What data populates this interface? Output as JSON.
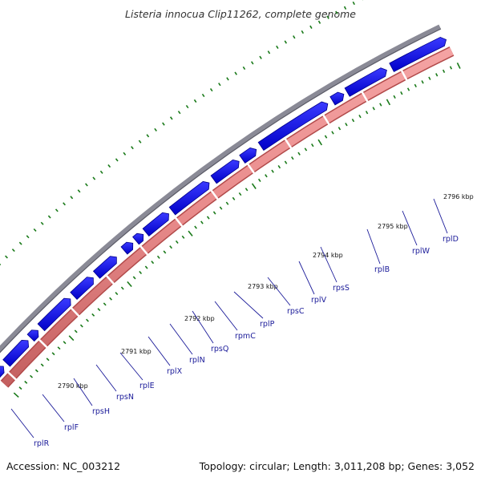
{
  "title": "Listeria innocua Clip11262, complete genome",
  "accession": "Accession: NC_003212",
  "topology_info": "Topology: circular; Length: 3,011,208 bp; Genes: 3,052",
  "colors": {
    "backbone": "#8a8a96",
    "forward_gene": "#1212e6",
    "reverse_gene": "#e88a8a",
    "tick": "#1a7a1a",
    "label": "#1a1a99"
  },
  "kbp_labels": [
    "2790 kbp",
    "2791 kbp",
    "2792 kbp",
    "2793 kbp",
    "2794 kbp",
    "2795 kbp",
    "2796 kbp"
  ],
  "genes": [
    "rplR",
    "rplF",
    "rpsH",
    "rpsN",
    "rplE",
    "rplX",
    "rplN",
    "rpsQ",
    "rpmC",
    "rplP",
    "rpsC",
    "rplV",
    "rpsS",
    "rplB",
    "rplW",
    "rplD"
  ]
}
